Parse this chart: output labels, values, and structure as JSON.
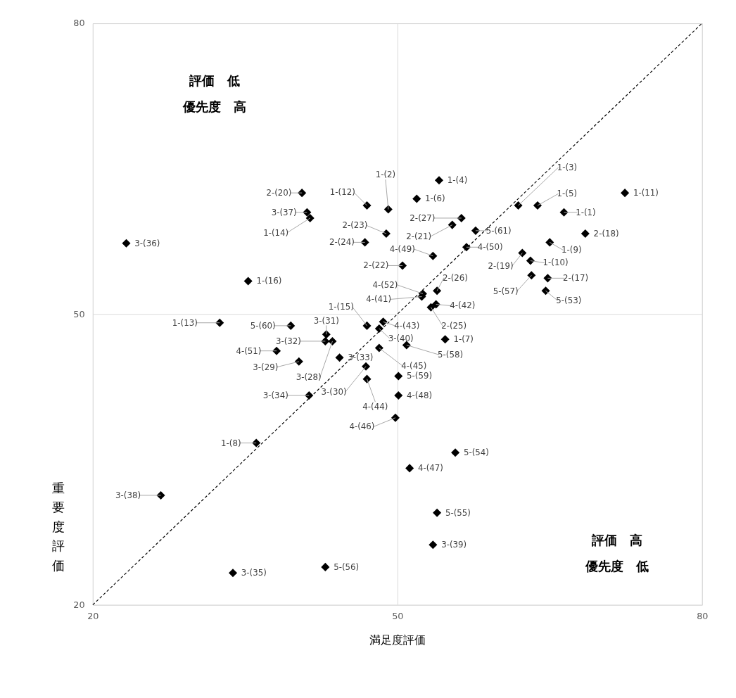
{
  "chart_data": {
    "type": "scatter",
    "xlabel": "満足度評価",
    "ylabel": "重要度評価",
    "xlim": [
      20,
      80
    ],
    "ylim": [
      20,
      80
    ],
    "xticks": [
      20,
      50,
      80
    ],
    "yticks": [
      20,
      50,
      80
    ],
    "grid": true,
    "x": [
      66.4,
      49.1,
      61.9,
      54.1,
      63.8,
      51.9,
      54.7,
      36.1,
      65.0,
      63.1,
      72.4,
      47.0,
      32.5,
      41.4,
      47.0,
      35.3,
      64.8,
      68.5,
      62.3,
      40.6,
      55.4,
      50.5,
      48.9,
      46.8,
      53.3,
      53.9,
      56.3,
      43.6,
      40.3,
      46.9,
      43.0,
      42.9,
      44.3,
      41.3,
      33.8,
      23.3,
      41.1,
      26.7,
      53.5,
      48.2,
      52.4,
      53.8,
      48.6,
      47.0,
      48.2,
      49.8,
      51.2,
      50.1,
      53.5,
      56.8,
      38.1,
      52.5,
      64.6,
      55.7,
      53.9,
      42.9,
      63.2,
      50.9,
      50.1,
      39.5,
      57.7
    ],
    "series": [
      {
        "marker": "diamond",
        "color": "#000000",
        "values": [
          60.5,
          60.8,
          61.2,
          63.8,
          61.2,
          61.9,
          47.4,
          36.7,
          57.4,
          55.5,
          62.5,
          61.2,
          49.1,
          59.9,
          48.8,
          53.4,
          53.7,
          58.3,
          56.3,
          62.5,
          59.2,
          55.0,
          58.3,
          57.4,
          50.7,
          52.4,
          59.9,
          47.2,
          45.1,
          44.6,
          47.9,
          47.2,
          45.5,
          41.6,
          23.3,
          57.3,
          60.5,
          31.3,
          26.2,
          48.5,
          51.8,
          51.0,
          49.2,
          43.3,
          46.5,
          39.3,
          34.1,
          41.6,
          56.0,
          56.9,
          46.2,
          52.1,
          52.4,
          35.7,
          29.5,
          23.9,
          54.0,
          46.8,
          43.6,
          48.8,
          58.6
        ]
      },
      {
        "type": "line",
        "color": "#000000",
        "line_style": "dashed",
        "x": [
          20,
          80
        ],
        "values": [
          20,
          80
        ]
      }
    ],
    "annotations": [
      "評価　低",
      "優先度　高",
      "評価　高",
      "優先度　低",
      {
        "text": "1-(1)",
        "x": 66.4,
        "y": 60.5
      },
      {
        "text": "1-(2)",
        "x": 49.1,
        "y": 60.8
      },
      {
        "text": "1-(3)",
        "x": 61.9,
        "y": 61.2
      },
      {
        "text": "1-(4)",
        "x": 54.1,
        "y": 63.8
      },
      {
        "text": "1-(5)",
        "x": 63.8,
        "y": 61.2
      },
      {
        "text": "1-(6)",
        "x": 51.9,
        "y": 61.9
      },
      {
        "text": "1-(7)",
        "x": 54.7,
        "y": 47.4
      },
      {
        "text": "1-(8)",
        "x": 36.1,
        "y": 36.7
      },
      {
        "text": "1-(9)",
        "x": 65.0,
        "y": 57.4
      },
      {
        "text": "1-(10)",
        "x": 63.1,
        "y": 55.5
      },
      {
        "text": "1-(11)",
        "x": 72.4,
        "y": 62.5
      },
      {
        "text": "1-(12)",
        "x": 47.0,
        "y": 61.2
      },
      {
        "text": "1-(13)",
        "x": 32.5,
        "y": 49.1
      },
      {
        "text": "1-(14)",
        "x": 41.4,
        "y": 59.9
      },
      {
        "text": "1-(15)",
        "x": 47.0,
        "y": 48.8
      },
      {
        "text": "1-(16)",
        "x": 35.3,
        "y": 53.4
      },
      {
        "text": "2-(17)",
        "x": 64.8,
        "y": 53.7
      },
      {
        "text": "2-(18)",
        "x": 68.5,
        "y": 58.3
      },
      {
        "text": "2-(19)",
        "x": 62.3,
        "y": 56.3
      },
      {
        "text": "2-(20)",
        "x": 40.6,
        "y": 62.5
      },
      {
        "text": "2-(21)",
        "x": 55.4,
        "y": 59.2
      },
      {
        "text": "2-(22)",
        "x": 50.5,
        "y": 55.0
      },
      {
        "text": "2-(23)",
        "x": 48.9,
        "y": 58.3
      },
      {
        "text": "2-(24)",
        "x": 46.8,
        "y": 57.4
      },
      {
        "text": "2-(25)",
        "x": 53.3,
        "y": 50.7
      },
      {
        "text": "2-(26)",
        "x": 53.9,
        "y": 52.4
      },
      {
        "text": "2-(27)",
        "x": 56.3,
        "y": 59.9
      },
      {
        "text": "3-(28)",
        "x": 43.6,
        "y": 47.2
      },
      {
        "text": "3-(29)",
        "x": 40.3,
        "y": 45.1
      },
      {
        "text": "3-(30)",
        "x": 46.9,
        "y": 44.6
      },
      {
        "text": "3-(31)",
        "x": 43.0,
        "y": 47.9
      },
      {
        "text": "3-(32)",
        "x": 42.9,
        "y": 47.2
      },
      {
        "text": "3-(33)",
        "x": 44.3,
        "y": 45.5
      },
      {
        "text": "3-(34)",
        "x": 41.3,
        "y": 41.6
      },
      {
        "text": "3-(35)",
        "x": 33.8,
        "y": 23.3
      },
      {
        "text": "3-(36)",
        "x": 23.3,
        "y": 57.3
      },
      {
        "text": "3-(37)",
        "x": 41.1,
        "y": 60.5
      },
      {
        "text": "3-(38)",
        "x": 26.7,
        "y": 31.3
      },
      {
        "text": "3-(39)",
        "x": 53.5,
        "y": 26.2
      },
      {
        "text": "3-(40)",
        "x": 48.2,
        "y": 48.5
      },
      {
        "text": "4-(41)",
        "x": 52.4,
        "y": 51.8
      },
      {
        "text": "4-(42)",
        "x": 53.8,
        "y": 51.0
      },
      {
        "text": "4-(43)",
        "x": 48.6,
        "y": 49.2
      },
      {
        "text": "4-(44)",
        "x": 47.0,
        "y": 43.3
      },
      {
        "text": "4-(45)",
        "x": 48.2,
        "y": 46.5
      },
      {
        "text": "4-(46)",
        "x": 49.8,
        "y": 39.3
      },
      {
        "text": "4-(47)",
        "x": 51.2,
        "y": 34.1
      },
      {
        "text": "4-(48)",
        "x": 50.1,
        "y": 41.6
      },
      {
        "text": "4-(49)",
        "x": 53.5,
        "y": 56.0
      },
      {
        "text": "4-(50)",
        "x": 56.8,
        "y": 56.9
      },
      {
        "text": "4-(51)",
        "x": 38.1,
        "y": 46.2
      },
      {
        "text": "4-(52)",
        "x": 52.5,
        "y": 52.1
      },
      {
        "text": "5-(53)",
        "x": 64.6,
        "y": 52.4
      },
      {
        "text": "5-(54)",
        "x": 55.7,
        "y": 35.7
      },
      {
        "text": "5-(55)",
        "x": 53.9,
        "y": 29.5
      },
      {
        "text": "5-(56)",
        "x": 42.9,
        "y": 23.9
      },
      {
        "text": "5-(57)",
        "x": 63.2,
        "y": 54.0
      },
      {
        "text": "5-(58)",
        "x": 50.9,
        "y": 46.8
      },
      {
        "text": "5-(59)",
        "x": 50.1,
        "y": 43.6
      },
      {
        "text": "5-(60)",
        "x": 39.5,
        "y": 48.8
      },
      {
        "text": "5-(61)",
        "x": 57.7,
        "y": 58.6
      }
    ]
  }
}
